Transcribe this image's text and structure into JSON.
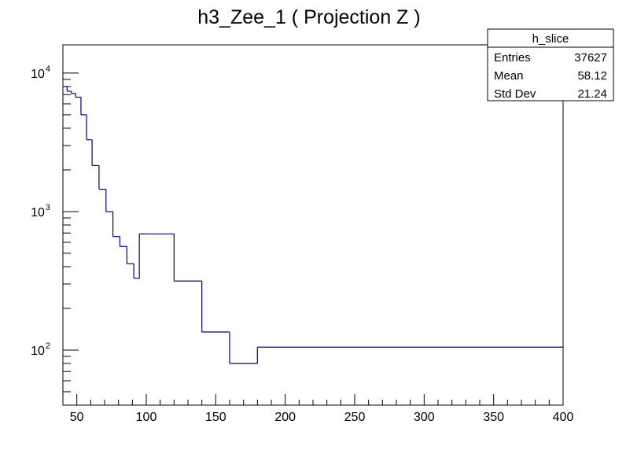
{
  "chart_data": {
    "type": "histogram",
    "title": "h3_Zee_1 ( Projection Z )",
    "xlabel": "",
    "ylabel": "",
    "xlim": [
      40,
      400
    ],
    "ylim": [
      40,
      16000
    ],
    "yscale": "log",
    "grid": false,
    "line_color": "#000080",
    "x_ticks": [
      50,
      100,
      150,
      200,
      250,
      300,
      350,
      400
    ],
    "y_ticks": [
      {
        "value": 100,
        "base": "10",
        "exp": "2"
      },
      {
        "value": 1000,
        "base": "10",
        "exp": "3"
      },
      {
        "value": 10000,
        "base": "10",
        "exp": "4"
      }
    ],
    "bin_edges": [
      40,
      43,
      46,
      49,
      53,
      57,
      61,
      66,
      71,
      76,
      81,
      86,
      91,
      95,
      100,
      120,
      140,
      160,
      180,
      200,
      400
    ],
    "values": [
      8000,
      7400,
      7150,
      6700,
      5000,
      3300,
      2150,
      1450,
      1000,
      660,
      560,
      420,
      330,
      690,
      690,
      315,
      135,
      80,
      105,
      105
    ],
    "stats_box": {
      "title": "h_slice",
      "position": "top-right",
      "rows": [
        {
          "label": "Entries",
          "value": "37627"
        },
        {
          "label": "Mean",
          "value": "58.12"
        },
        {
          "label": "Std Dev",
          "value": "21.24"
        }
      ]
    }
  }
}
